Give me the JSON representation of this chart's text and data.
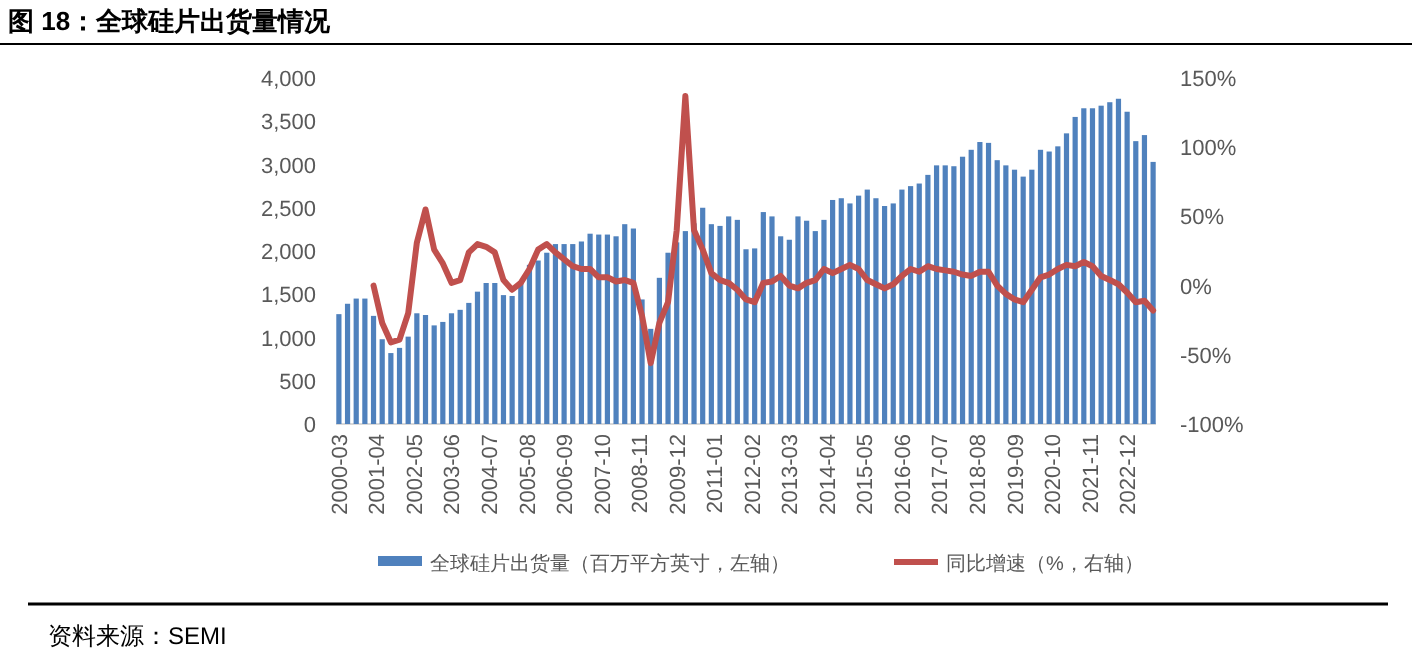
{
  "chart_data": {
    "type": "bar",
    "title": "图 18：全球硅片出货量情况",
    "x": [
      "2000-03",
      "2000-06",
      "2000-09",
      "2000-12",
      "2001-03",
      "2001-06",
      "2001-09",
      "2001-12",
      "2002-03",
      "2002-06",
      "2002-09",
      "2002-12",
      "2003-03",
      "2003-06",
      "2003-09",
      "2003-12",
      "2004-03",
      "2004-06",
      "2004-09",
      "2004-12",
      "2005-03",
      "2005-06",
      "2005-09",
      "2005-12",
      "2006-03",
      "2006-06",
      "2006-09",
      "2006-12",
      "2007-03",
      "2007-06",
      "2007-09",
      "2007-12",
      "2008-03",
      "2008-06",
      "2008-09",
      "2008-12",
      "2009-03",
      "2009-06",
      "2009-09",
      "2009-12",
      "2010-03",
      "2010-06",
      "2010-09",
      "2010-12",
      "2011-03",
      "2011-06",
      "2011-09",
      "2011-12",
      "2012-03",
      "2012-06",
      "2012-09",
      "2012-12",
      "2013-03",
      "2013-06",
      "2013-09",
      "2013-12",
      "2014-03",
      "2014-06",
      "2014-09",
      "2014-12",
      "2015-03",
      "2015-06",
      "2015-09",
      "2015-12",
      "2016-03",
      "2016-06",
      "2016-09",
      "2016-12",
      "2017-03",
      "2017-06",
      "2017-09",
      "2017-12",
      "2018-03",
      "2018-06",
      "2018-09",
      "2018-12",
      "2019-03",
      "2019-06",
      "2019-09",
      "2019-12",
      "2020-03",
      "2020-06",
      "2020-09",
      "2020-12",
      "2021-03",
      "2021-06",
      "2021-09",
      "2021-12",
      "2022-03",
      "2022-06",
      "2022-09",
      "2022-12",
      "2023-03",
      "2023-06",
      "2023-09"
    ],
    "series": [
      {
        "name": "全球硅片出货量（百万平方英寸，左轴）",
        "color": "#4f81bd",
        "values": [
          1270,
          1390,
          1450,
          1450,
          1250,
          980,
          820,
          880,
          1010,
          1280,
          1260,
          1140,
          1180,
          1280,
          1320,
          1400,
          1530,
          1630,
          1630,
          1490,
          1480,
          1630,
          1840,
          1890,
          1980,
          2080,
          2080,
          2080,
          2110,
          2200,
          2190,
          2190,
          2170,
          2310,
          2260,
          1440,
          1100,
          1690,
          1980,
          2100,
          2230,
          2320,
          2500,
          2310,
          2290,
          2400,
          2360,
          2020,
          2030,
          2450,
          2400,
          2170,
          2130,
          2400,
          2350,
          2230,
          2360,
          2590,
          2610,
          2550,
          2640,
          2710,
          2610,
          2520,
          2550,
          2710,
          2750,
          2780,
          2880,
          2990,
          2990,
          2980,
          3090,
          3170,
          3260,
          3250,
          3050,
          2990,
          2940,
          2860,
          2940,
          3170,
          3150,
          3210,
          3360,
          3550,
          3650,
          3650,
          3680,
          3720,
          3760,
          3610,
          3270,
          3340,
          3030
        ]
      },
      {
        "name": "同比增速（%，右轴）",
        "type": "line",
        "axis": "y2",
        "color": "#c0504d",
        "values": [
          null,
          null,
          null,
          null,
          0,
          -27,
          -41,
          -39,
          -20,
          31,
          55,
          26,
          16,
          2,
          4,
          24,
          30,
          28,
          24,
          4,
          -3,
          2,
          12,
          26,
          30,
          24,
          19,
          14,
          12,
          12,
          6,
          6,
          3,
          4,
          2,
          -22,
          -56,
          -27,
          -12,
          40,
          137,
          40,
          26,
          9,
          4,
          2,
          -3,
          -10,
          -12,
          2,
          3,
          7,
          0,
          -2,
          2,
          4,
          12,
          9,
          12,
          15,
          12,
          4,
          1,
          -2,
          1,
          7,
          12,
          10,
          14,
          12,
          11,
          10,
          8,
          7,
          10,
          10,
          0,
          -6,
          -10,
          -12,
          -3,
          6,
          8,
          12,
          15,
          14,
          17,
          14,
          7,
          4,
          1,
          -5,
          -12,
          -11,
          -18
        ]
      }
    ],
    "xlim": [
      "2000-02",
      "2023-10"
    ],
    "xticks": [
      "2000-03",
      "2001-04",
      "2002-05",
      "2003-06",
      "2004-07",
      "2005-08",
      "2006-09",
      "2007-10",
      "2008-11",
      "2009-12",
      "2011-01",
      "2012-02",
      "2013-03",
      "2014-04",
      "2015-05",
      "2016-06",
      "2017-07",
      "2018-08",
      "2019-09",
      "2020-10",
      "2021-11",
      "2022-12"
    ],
    "ylim": [
      0,
      4000
    ],
    "yticks": [
      0,
      500,
      {
        "value": 1000,
        "label": "1,000"
      },
      {
        "value": 1500,
        "label": "1,500"
      },
      {
        "value": 2000,
        "label": "2,000"
      },
      {
        "value": 2500,
        "label": "2,500"
      },
      {
        "value": 3000,
        "label": "3,000"
      },
      {
        "value": 3500,
        "label": "3,500"
      },
      {
        "value": 4000,
        "label": "4,000"
      }
    ],
    "y2lim": [
      -100,
      150
    ],
    "y2ticks": [
      {
        "value": -100,
        "label": "-100%"
      },
      {
        "value": -50,
        "label": "-50%"
      },
      {
        "value": 0,
        "label": "0%"
      },
      {
        "value": 50,
        "label": "50%"
      },
      {
        "value": 100,
        "label": "100%"
      },
      {
        "value": 150,
        "label": "150%"
      }
    ],
    "legend": "bottom",
    "annotations": [
      "资料来源：SEMI"
    ]
  }
}
